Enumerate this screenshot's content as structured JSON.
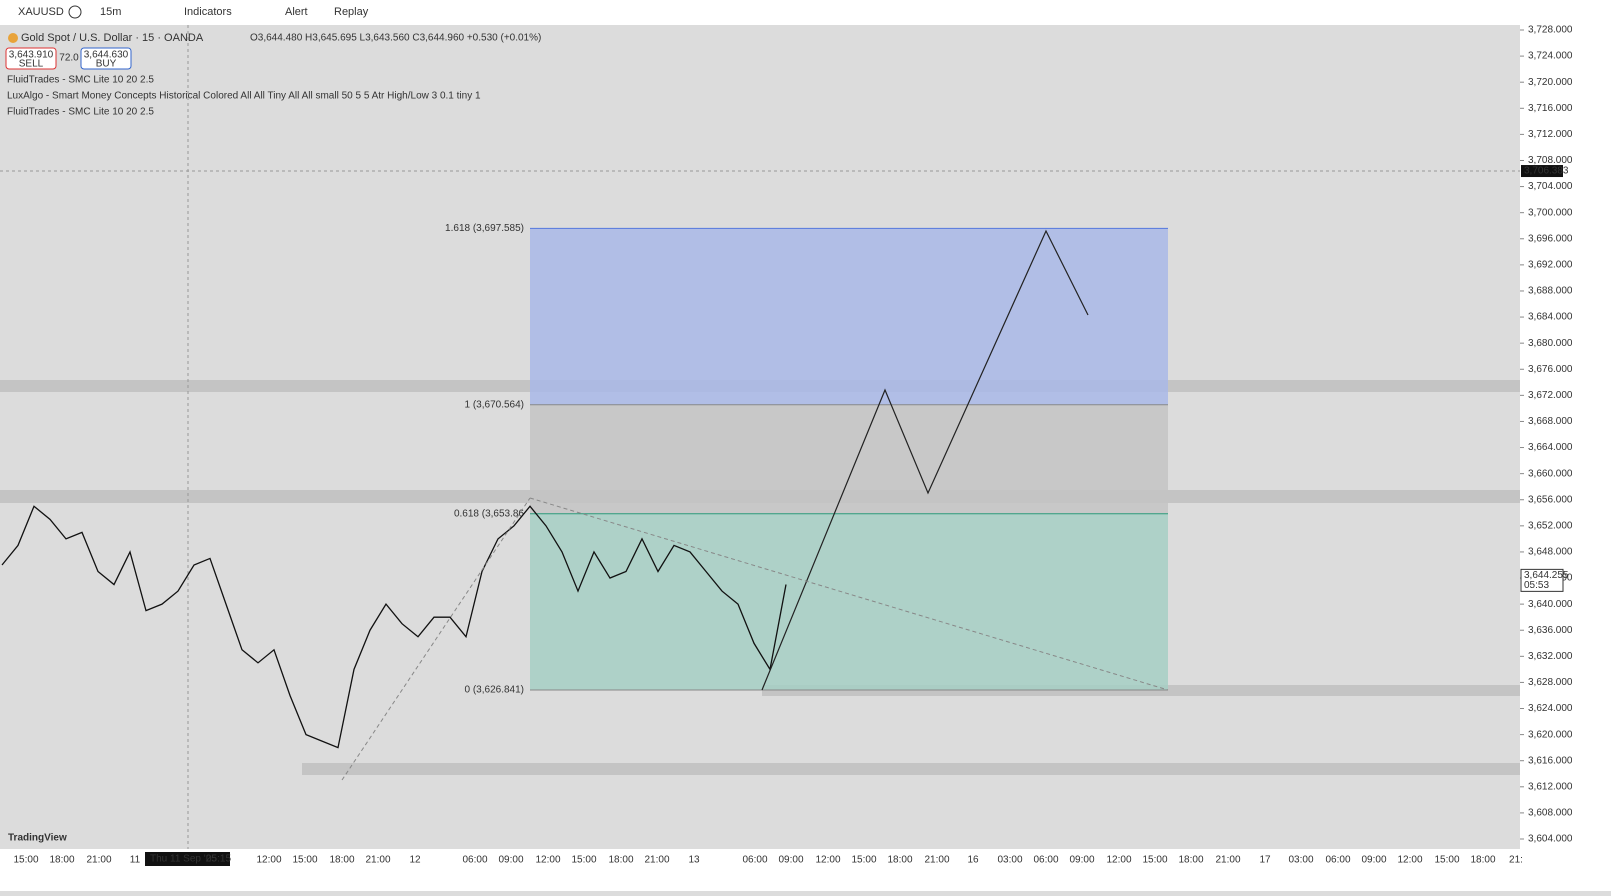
{
  "toolbar": {
    "symbol": "XAUUSD",
    "interval": "15m",
    "indicators": "Indicators",
    "alert": "Alert",
    "replay": "Replay"
  },
  "legend": {
    "title": "Gold Spot / U.S. Dollar · 15 · OANDA",
    "ohlc": "O3,644.480 H3,645.695 L3,643.560 C3,644.960 +0.530 (+0.01%)",
    "sell_price": "3,643.910",
    "sell": "SELL",
    "spread": "72.0",
    "buy_price": "3,644.630",
    "buy": "BUY",
    "indicators": [
      "FluidTrades - SMC Lite 10 20 2.5",
      "LuxAlgo - Smart Money Concepts Historical Colored All All Tiny All All small 50 5 5 Atr High/Low 3 0.1 tiny 1",
      "FluidTrades - SMC Lite 10 20 2.5"
    ]
  },
  "price_axis": {
    "ylim": [
      3604,
      3728
    ],
    "yticks": [
      {
        "value": 3728,
        "label": "3,728.000"
      },
      {
        "value": 3724,
        "label": "3,724.000"
      },
      {
        "value": 3720,
        "label": "3,720.000"
      },
      {
        "value": 3716,
        "label": "3,716.000"
      },
      {
        "value": 3712,
        "label": "3,712.000"
      },
      {
        "value": 3708,
        "label": "3,708.000"
      },
      {
        "value": 3704,
        "label": "3,704.000"
      },
      {
        "value": 3700,
        "label": "3,700.000"
      },
      {
        "value": 3696,
        "label": "3,696.000"
      },
      {
        "value": 3692,
        "label": "3,692.000"
      },
      {
        "value": 3688,
        "label": "3,688.000"
      },
      {
        "value": 3684,
        "label": "3,684.000"
      },
      {
        "value": 3680,
        "label": "3,680.000"
      },
      {
        "value": 3676,
        "label": "3,676.000"
      },
      {
        "value": 3672,
        "label": "3,672.000"
      },
      {
        "value": 3668,
        "label": "3,668.000"
      },
      {
        "value": 3664,
        "label": "3,664.000"
      },
      {
        "value": 3660,
        "label": "3,660.000"
      },
      {
        "value": 3656,
        "label": "3,656.000"
      },
      {
        "value": 3652,
        "label": "3,652.000"
      },
      {
        "value": 3648,
        "label": "3,648.000"
      },
      {
        "value": 3644,
        "label": "3,644.000"
      },
      {
        "value": 3640,
        "label": "3,640.000"
      },
      {
        "value": 3636,
        "label": "3,636.000"
      },
      {
        "value": 3632,
        "label": "3,632.000"
      },
      {
        "value": 3628,
        "label": "3,628.000"
      },
      {
        "value": 3624,
        "label": "3,624.000"
      },
      {
        "value": 3620,
        "label": "3,620.000"
      },
      {
        "value": 3616,
        "label": "3,616.000"
      },
      {
        "value": 3612,
        "label": "3,612.000"
      },
      {
        "value": 3608,
        "label": "3,608.000"
      },
      {
        "value": 3604,
        "label": "3,604.000"
      }
    ],
    "crosshair": {
      "value": 3706.383,
      "label": "3,706.383"
    },
    "last": {
      "value": 3644.255,
      "label": "3,644.255",
      "countdown": "05:53"
    }
  },
  "time_axis": {
    "labels": [
      "15:00",
      "18:00",
      "21:00",
      "11",
      "12:00",
      "15:00",
      "18:00",
      "21:00",
      "12",
      "06:00",
      "09:00",
      "12:00",
      "15:00",
      "18:00",
      "21:00",
      "13",
      "06:00",
      "09:00",
      "12:00",
      "15:00",
      "18:00",
      "21:00",
      "16",
      "03:00",
      "06:00",
      "09:00",
      "12:00",
      "15:00",
      "18:00",
      "21:00",
      "17",
      "03:00",
      "06:00",
      "09:00",
      "12:00",
      "15:00",
      "18:00",
      "21:"
    ],
    "cursor_date": "Thu 11 Sep '25",
    "cursor_time": "05:15"
  },
  "price_series": {
    "values": [
      3646,
      3649,
      3655,
      3653,
      3650,
      3651,
      3645,
      3643,
      3648,
      3639,
      3640,
      3642,
      3646,
      3647,
      3640,
      3633,
      3631,
      3633,
      3626,
      3620,
      3619,
      3618,
      3630,
      3636,
      3640,
      3637,
      3635,
      3638,
      3638,
      3635,
      3645,
      3650,
      3652,
      3655,
      3652,
      3648,
      3642,
      3648,
      3644,
      3645,
      3650,
      3645,
      3649,
      3648,
      3645,
      3642,
      3640,
      3634,
      3630,
      3643
    ]
  },
  "fib": [
    {
      "price": 3697.585,
      "label": "1.618 (3,697.585)"
    },
    {
      "price": 3670.564,
      "label": "1 (3,670.564)"
    },
    {
      "price": 3653.86,
      "label": "0.618 (3,653.86"
    },
    {
      "price": 3626.841,
      "label": "0 (3,626.841)"
    }
  ],
  "brand": "TradingView"
}
